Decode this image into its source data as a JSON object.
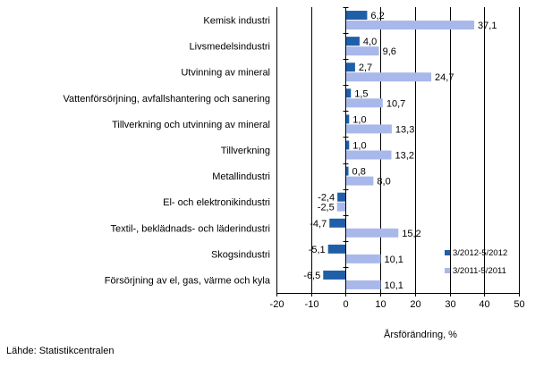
{
  "chart_data": {
    "type": "bar",
    "orientation": "horizontal",
    "categories": [
      "Kemisk industri",
      "Livsmedelsindustri",
      "Utvinning av mineral",
      "Vattenförsörjning, avfallshantering och sanering",
      "Tillverkning och utvinning av mineral",
      "Tillverkning",
      "Metallindustri",
      "El- och elektronikindustri",
      "Textil-, beklädnads- och läderindustri",
      "Skogsindustri",
      "Försörjning av el, gas, värme och kyla"
    ],
    "series": [
      {
        "name": "3/2012-5/2012",
        "color": "#1f5fa8",
        "values": [
          6.2,
          4.0,
          2.7,
          1.5,
          1.0,
          1.0,
          0.8,
          -2.4,
          -4.7,
          -5.1,
          -6.5
        ],
        "labels": [
          "6,2",
          "4,0",
          "2,7",
          "1,5",
          "1,0",
          "1,0",
          "0,8",
          "-2,4",
          "-4,7",
          "-5,1",
          "-6,5"
        ]
      },
      {
        "name": "3/2011-5/2011",
        "color": "#a9b8ea",
        "values": [
          37.1,
          9.6,
          24.7,
          10.7,
          13.3,
          13.2,
          8.0,
          -2.5,
          15.2,
          10.1,
          10.1
        ],
        "labels": [
          "37,1",
          "9,6",
          "24,7",
          "10,7",
          "13,3",
          "13,2",
          "8,0",
          "-2,5",
          "15,2",
          "10,1",
          "10,1"
        ]
      }
    ],
    "xlim": [
      -20,
      50
    ],
    "xticks": [
      -20,
      -10,
      0,
      10,
      20,
      30,
      40,
      50
    ],
    "xtick_labels": [
      "-20",
      "-10",
      "0",
      "10",
      "20",
      "30",
      "40",
      "50"
    ],
    "xlabel": "Årsförändring, %",
    "ylabel": "",
    "title": "",
    "grid": "vertical",
    "legend": "lower-right"
  },
  "source": "Lähde: Statistikcentralen"
}
